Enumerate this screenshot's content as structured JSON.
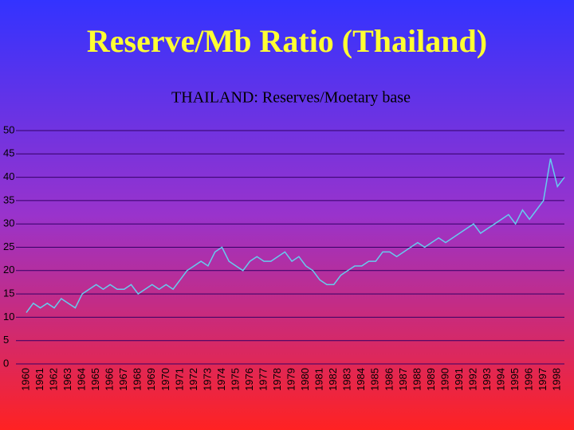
{
  "chart_data": {
    "type": "line",
    "title": "Reserve/Mb Ratio (Thailand)",
    "subtitle": "THAILAND: Reserves/Moetary base",
    "categories": [
      "1960",
      null,
      "1961",
      null,
      "1962",
      null,
      "1963",
      null,
      "1964",
      null,
      "1965",
      null,
      "1966",
      null,
      "1967",
      null,
      "1968",
      null,
      "1969",
      null,
      "1970",
      null,
      "1971",
      null,
      "1972",
      null,
      "1973",
      null,
      "1974",
      null,
      "1975",
      null,
      "1976",
      null,
      "1977",
      null,
      "1978",
      null,
      "1979",
      null,
      "1980",
      null,
      "1981",
      null,
      "1982",
      null,
      "1983",
      null,
      "1984",
      null,
      "1985",
      null,
      "1986",
      null,
      "1987",
      null,
      "1988",
      null,
      "1989",
      null,
      "1990",
      null,
      "1991",
      null,
      "1992",
      null,
      "1993",
      null,
      "1994",
      null,
      "1995",
      null,
      "1996",
      null,
      "1997",
      null,
      "1998",
      null
    ],
    "series": [
      {
        "name": "Reserves/Monetary base",
        "color": "#66ccee",
        "values": [
          11,
          13,
          12,
          13,
          12,
          14,
          13,
          12,
          15,
          16,
          17,
          16,
          17,
          16,
          16,
          17,
          15,
          16,
          17,
          16,
          17,
          16,
          18,
          20,
          21,
          22,
          21,
          24,
          25,
          22,
          21,
          20,
          22,
          23,
          22,
          22,
          23,
          24,
          22,
          23,
          21,
          20,
          18,
          17,
          17,
          19,
          20,
          21,
          21,
          22,
          22,
          24,
          24,
          23,
          24,
          25,
          26,
          25,
          26,
          27,
          26,
          27,
          28,
          29,
          30,
          28,
          29,
          30,
          31,
          32,
          30,
          33,
          31,
          33,
          35,
          44,
          38,
          40
        ]
      }
    ],
    "ylim": [
      0,
      50
    ],
    "yticks": [
      0,
      5,
      10,
      15,
      20,
      25,
      30,
      35,
      40,
      45,
      50
    ],
    "grid": true
  }
}
